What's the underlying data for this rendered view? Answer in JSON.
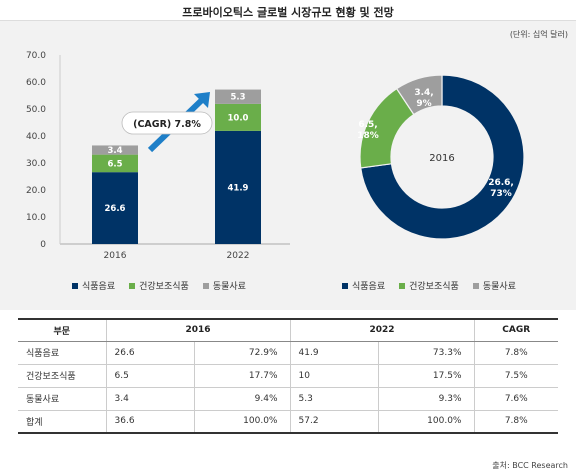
{
  "title": "프로바이오틱스 글로벌 시장규모 현황 및 전망",
  "unit_note": "(단위: 십억 달러)",
  "source": "출처: BCC Research",
  "colors": {
    "navy": "#003366",
    "green": "#6aae4a",
    "gray": "#9e9e9e",
    "arrow": "#1e7fc8"
  },
  "chart_data": [
    {
      "type": "bar",
      "stacked": true,
      "categories": [
        "2016",
        "2022"
      ],
      "series": [
        {
          "name": "식품음료",
          "values": [
            26.6,
            41.9
          ],
          "labels": [
            "26.6",
            "41.9"
          ]
        },
        {
          "name": "건강보조식품",
          "values": [
            6.5,
            10.0
          ],
          "labels": [
            "6.5",
            "10.0"
          ]
        },
        {
          "name": "동물사료",
          "values": [
            3.4,
            5.3
          ],
          "labels": [
            "3.4",
            "5.3"
          ]
        }
      ],
      "y_ticks": [
        "0",
        "10.0",
        "20.0",
        "30.0",
        "40.0",
        "50.0",
        "60.0",
        "70.0"
      ],
      "ylim": [
        0,
        70
      ],
      "annotation": "(CAGR) 7.8%",
      "legend": "bottom"
    },
    {
      "type": "pie",
      "donut": true,
      "center_label": "2016",
      "slices": [
        {
          "name": "식품음료",
          "value": 26.6,
          "label": "26.6, 73%"
        },
        {
          "name": "건강보조식품",
          "value": 6.5,
          "label": "6.5, 18%"
        },
        {
          "name": "동물사료",
          "value": 3.4,
          "label": "3.4, 9%"
        }
      ],
      "legend": "bottom"
    }
  ],
  "table": {
    "headers": [
      "부문",
      "2016",
      "2022",
      "CAGR"
    ],
    "rows": [
      [
        "식품음료",
        "26.6",
        "72.9%",
        "41.9",
        "73.3%",
        "7.8%"
      ],
      [
        "건강보조식품",
        "6.5",
        "17.7%",
        "10",
        "17.5%",
        "7.5%"
      ],
      [
        "동물사료",
        "3.4",
        "9.4%",
        "5.3",
        "9.3%",
        "7.6%"
      ],
      [
        "합계",
        "36.6",
        "100.0%",
        "57.2",
        "100.0%",
        "7.8%"
      ]
    ]
  }
}
